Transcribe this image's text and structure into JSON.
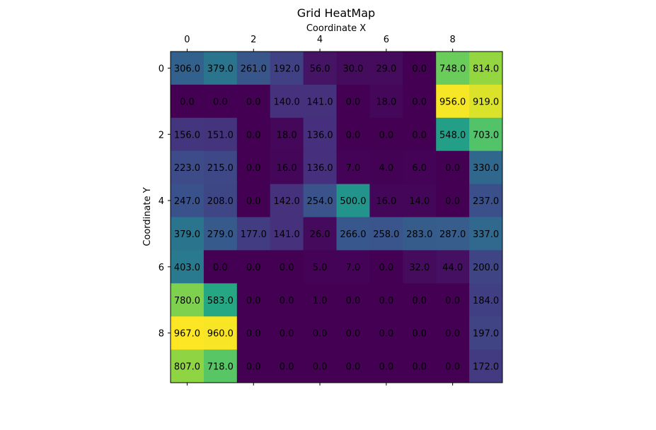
{
  "chart_data": {
    "type": "heatmap",
    "title": "Grid HeatMap",
    "xlabel": "Coordinate X",
    "ylabel": "Coordinate Y",
    "x_ticks": [
      0,
      2,
      4,
      6,
      8
    ],
    "y_ticks": [
      0,
      2,
      4,
      6,
      8
    ],
    "x_axis_position": "top",
    "colormap": "viridis",
    "vmin": 0,
    "vmax": 967,
    "grid": false,
    "values": [
      [
        306.0,
        379.0,
        261.0,
        192.0,
        56.0,
        30.0,
        29.0,
        0.0,
        748.0,
        814.0
      ],
      [
        0.0,
        0.0,
        0.0,
        140.0,
        141.0,
        0.0,
        18.0,
        0.0,
        956.0,
        919.0
      ],
      [
        156.0,
        151.0,
        0.0,
        18.0,
        136.0,
        0.0,
        0.0,
        0.0,
        548.0,
        703.0
      ],
      [
        223.0,
        215.0,
        0.0,
        16.0,
        136.0,
        7.0,
        4.0,
        6.0,
        0.0,
        330.0
      ],
      [
        247.0,
        208.0,
        0.0,
        142.0,
        254.0,
        500.0,
        16.0,
        14.0,
        0.0,
        237.0
      ],
      [
        379.0,
        279.0,
        177.0,
        141.0,
        26.0,
        266.0,
        258.0,
        283.0,
        287.0,
        337.0
      ],
      [
        403.0,
        0.0,
        0.0,
        0.0,
        5.0,
        7.0,
        0.0,
        32.0,
        44.0,
        200.0
      ],
      [
        780.0,
        583.0,
        0.0,
        0.0,
        1.0,
        0.0,
        0.0,
        0.0,
        0.0,
        184.0
      ],
      [
        967.0,
        960.0,
        0.0,
        0.0,
        0.0,
        0.0,
        0.0,
        0.0,
        0.0,
        197.0
      ],
      [
        807.0,
        718.0,
        0.0,
        0.0,
        0.0,
        0.0,
        0.0,
        0.0,
        0.0,
        172.0
      ]
    ]
  }
}
